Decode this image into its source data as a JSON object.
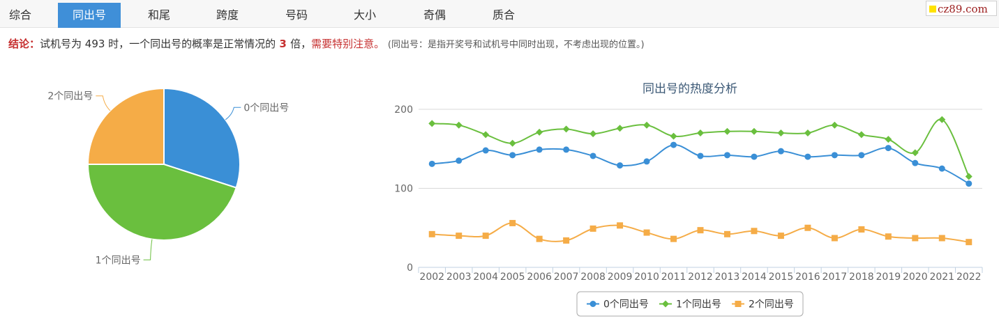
{
  "tabs": [
    {
      "label": "综合",
      "active": false
    },
    {
      "label": "同出号",
      "active": true
    },
    {
      "label": "和尾",
      "active": false
    },
    {
      "label": "跨度",
      "active": false
    },
    {
      "label": "号码",
      "active": false
    },
    {
      "label": "大小",
      "active": false
    },
    {
      "label": "奇偶",
      "active": false
    },
    {
      "label": "质合",
      "active": false
    }
  ],
  "logo": {
    "text": "cz89.com"
  },
  "conclusion": {
    "lead": "结论：",
    "text1": "试机号为 493 时，一个同出号的概率是正常情况的",
    "times": " 3 ",
    "text2": "倍，",
    "warning": "需要特别注意。",
    "paren": "(同出号：是指开奖号和试机号中同时出现，不考虑出现的位置。)"
  },
  "colors": {
    "c0": "#3a8fd6",
    "c1": "#6abf3e",
    "c2": "#f5ac47",
    "tab_active": "#3f8fd8",
    "accent_red": "#c62f2f"
  },
  "chart_data": [
    {
      "type": "pie",
      "slices": [
        {
          "label": "0个同出号",
          "value": 30
        },
        {
          "label": "1个同出号",
          "value": 45
        },
        {
          "label": "2个同出号",
          "value": 25
        }
      ]
    },
    {
      "type": "line",
      "title": "同出号的热度分析",
      "x": [
        "2002",
        "2003",
        "2004",
        "2005",
        "2006",
        "2007",
        "2008",
        "2009",
        "2010",
        "2011",
        "2012",
        "2013",
        "2014",
        "2015",
        "2016",
        "2017",
        "2018",
        "2019",
        "2020",
        "2021",
        "2022"
      ],
      "ylim": [
        0,
        200
      ],
      "yticks": [
        0,
        100,
        200
      ],
      "grid": true,
      "legend": "bottom",
      "series": [
        {
          "name": "0个同出号",
          "values": [
            131,
            135,
            148,
            142,
            149,
            149,
            141,
            129,
            134,
            155,
            141,
            142,
            140,
            147,
            140,
            142,
            142,
            151,
            132,
            125,
            106
          ]
        },
        {
          "name": "1个同出号",
          "values": [
            182,
            180,
            168,
            157,
            171,
            175,
            169,
            176,
            180,
            166,
            170,
            172,
            172,
            170,
            170,
            180,
            168,
            162,
            145,
            187,
            115
          ]
        },
        {
          "name": "2个同出号",
          "values": [
            42,
            40,
            40,
            56,
            36,
            34,
            49,
            53,
            44,
            36,
            47,
            42,
            46,
            40,
            50,
            37,
            48,
            39,
            37,
            37,
            32
          ]
        }
      ]
    }
  ]
}
